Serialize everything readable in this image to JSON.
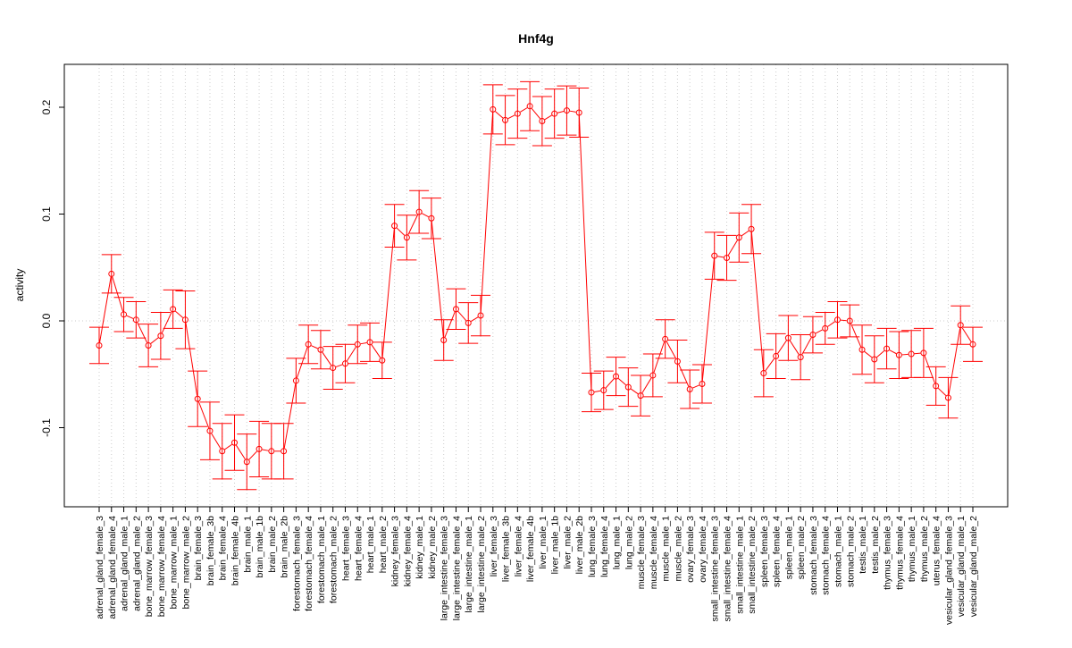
{
  "chart_data": {
    "type": "line",
    "title": "Hnf4g",
    "xlabel": "",
    "ylabel": "activity",
    "ylim": [
      -0.175,
      0.24
    ],
    "yticks": [
      -0.1,
      0.0,
      0.1,
      0.2
    ],
    "ytick_labels": [
      "-0.1",
      "0.0",
      "0.1",
      "0.2"
    ],
    "grid": "dotted vertical per category, dotted horizontal at 0",
    "color": "#ff0000",
    "categories": [
      "adrenal_gland_female_3",
      "adrenal_gland_female_4",
      "adrenal_gland_male_1",
      "adrenal_gland_male_2",
      "bone_marrow_female_3",
      "bone_marrow_female_4",
      "bone_marrow_male_1",
      "bone_marrow_male_2",
      "brain_female_3",
      "brain_female_3b",
      "brain_female_4",
      "brain_female_4b",
      "brain_male_1",
      "brain_male_1b",
      "brain_male_2",
      "brain_male_2b",
      "forestomach_female_3",
      "forestomach_female_4",
      "forestomach_male_1",
      "forestomach_male_2",
      "heart_female_3",
      "heart_female_4",
      "heart_male_1",
      "heart_male_2",
      "kidney_female_3",
      "kidney_female_4",
      "kidney_male_1",
      "kidney_male_2",
      "large_intestine_female_3",
      "large_intestine_female_4",
      "large_intestine_male_1",
      "large_intestine_male_2",
      "liver_female_3",
      "liver_female_3b",
      "liver_female_4",
      "liver_female_4b",
      "liver_male_1",
      "liver_male_1b",
      "liver_male_2",
      "liver_male_2b",
      "lung_female_3",
      "lung_female_4",
      "lung_male_1",
      "lung_male_2",
      "muscle_female_3",
      "muscle_female_4",
      "muscle_male_1",
      "muscle_male_2",
      "ovary_female_3",
      "ovary_female_4",
      "small_intestine_female_3",
      "small_intestine_female_4",
      "small_intestine_male_1",
      "small_intestine_male_2",
      "spleen_female_3",
      "spleen_female_4",
      "spleen_male_1",
      "spleen_male_2",
      "stomach_female_3",
      "stomach_female_4",
      "stomach_male_1",
      "stomach_male_2",
      "testis_male_1",
      "testis_male_2",
      "thymus_female_3",
      "thymus_female_4",
      "thymus_male_1",
      "thymus_male_2",
      "uterus_female_4",
      "vesicular_gland_female_3",
      "vesicular_gland_male_1",
      "vesicular_gland_male_2"
    ],
    "values": [
      -0.023,
      0.044,
      0.006,
      0.001,
      -0.023,
      -0.014,
      0.011,
      0.001,
      -0.073,
      -0.103,
      -0.122,
      -0.114,
      -0.132,
      -0.12,
      -0.122,
      -0.122,
      -0.056,
      -0.022,
      -0.027,
      -0.044,
      -0.04,
      -0.022,
      -0.02,
      -0.037,
      0.089,
      0.078,
      0.102,
      0.096,
      -0.018,
      0.011,
      -0.002,
      0.005,
      0.198,
      0.188,
      0.194,
      0.201,
      0.187,
      0.194,
      0.197,
      0.195,
      -0.067,
      -0.065,
      -0.052,
      -0.062,
      -0.07,
      -0.051,
      -0.017,
      -0.038,
      -0.064,
      -0.059,
      0.061,
      0.059,
      0.078,
      0.086,
      -0.049,
      -0.033,
      -0.016,
      -0.034,
      -0.013,
      -0.007,
      0.001,
      0.0,
      -0.027,
      -0.036,
      -0.026,
      -0.032,
      -0.031,
      -0.03,
      -0.061,
      -0.072,
      -0.004,
      -0.022
    ],
    "errors": [
      0.017,
      0.018,
      0.016,
      0.017,
      0.02,
      0.022,
      0.018,
      0.027,
      0.026,
      0.027,
      0.026,
      0.026,
      0.026,
      0.026,
      0.026,
      0.026,
      0.021,
      0.018,
      0.018,
      0.02,
      0.018,
      0.018,
      0.018,
      0.017,
      0.02,
      0.021,
      0.02,
      0.019,
      0.019,
      0.019,
      0.019,
      0.019,
      0.023,
      0.023,
      0.023,
      0.023,
      0.023,
      0.023,
      0.023,
      0.023,
      0.018,
      0.018,
      0.018,
      0.018,
      0.019,
      0.02,
      0.018,
      0.02,
      0.018,
      0.018,
      0.022,
      0.021,
      0.023,
      0.023,
      0.022,
      0.021,
      0.021,
      0.021,
      0.017,
      0.015,
      0.017,
      0.015,
      0.023,
      0.022,
      0.019,
      0.022,
      0.022,
      0.023,
      0.018,
      0.019,
      0.018,
      0.016
    ]
  }
}
